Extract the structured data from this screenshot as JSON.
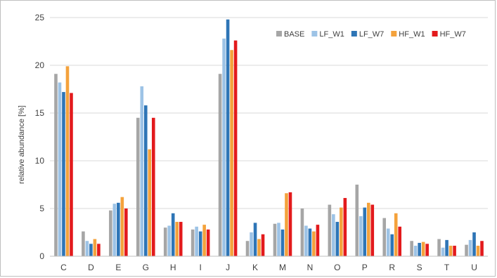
{
  "chart_data": {
    "type": "bar",
    "title": "",
    "xlabel": "",
    "ylabel": "relative abundance [%]",
    "ylim": [
      0,
      25
    ],
    "yticks": [
      0,
      5,
      10,
      15,
      20,
      25
    ],
    "grid": true,
    "legend_position": "top-right",
    "categories": [
      "C",
      "D",
      "E",
      "G",
      "H",
      "I",
      "J",
      "K",
      "M",
      "N",
      "O",
      "P",
      "R",
      "S",
      "T",
      "U"
    ],
    "series": [
      {
        "name": "BASE",
        "color": "#a6a6a6",
        "values": [
          19.1,
          2.6,
          4.8,
          14.5,
          3.0,
          2.8,
          19.1,
          1.6,
          3.4,
          5.0,
          5.4,
          7.5,
          4.0,
          1.6,
          1.8,
          1.2
        ]
      },
      {
        "name": "LF_W1",
        "color": "#9dc3e6",
        "values": [
          18.2,
          1.6,
          5.5,
          17.8,
          3.2,
          3.1,
          22.8,
          2.5,
          3.5,
          3.2,
          4.4,
          4.2,
          2.9,
          1.1,
          0.9,
          1.7
        ]
      },
      {
        "name": "LF_W7",
        "color": "#2e75b6",
        "values": [
          17.2,
          1.3,
          5.6,
          15.8,
          4.5,
          2.6,
          24.8,
          3.5,
          2.8,
          2.9,
          3.6,
          5.1,
          2.3,
          1.4,
          1.7,
          2.5
        ]
      },
      {
        "name": "HF_W1",
        "color": "#f4a23c",
        "values": [
          19.9,
          1.8,
          6.2,
          11.2,
          3.6,
          3.3,
          21.6,
          1.8,
          6.6,
          2.6,
          5.1,
          5.6,
          4.5,
          1.5,
          1.1,
          1.1
        ]
      },
      {
        "name": "HF_W7",
        "color": "#e31a1c",
        "values": [
          17.1,
          1.3,
          5.0,
          14.5,
          3.6,
          2.8,
          22.6,
          2.3,
          6.7,
          3.3,
          6.1,
          5.4,
          3.1,
          1.3,
          1.1,
          1.6
        ]
      }
    ]
  }
}
